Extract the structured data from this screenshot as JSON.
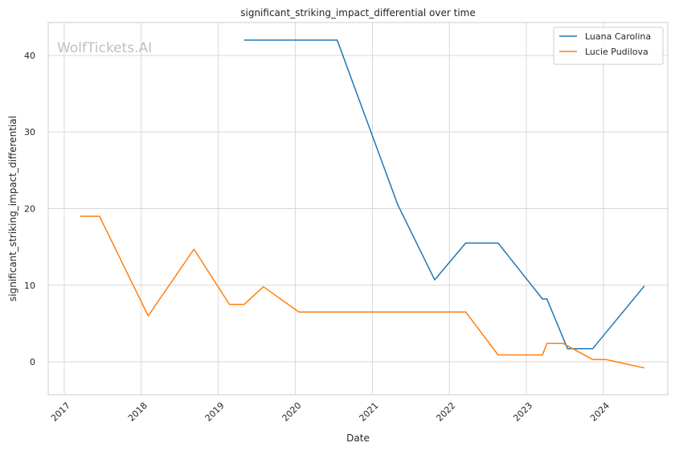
{
  "chart_data": {
    "type": "line",
    "title": "significant_striking_impact_differential over time",
    "xlabel": "Date",
    "ylabel": "significant_striking_impact_differential",
    "watermark": "WolfTickets.AI",
    "x_ticks": [
      "2017",
      "2018",
      "2019",
      "2020",
      "2021",
      "2022",
      "2023",
      "2024"
    ],
    "y_ticks": [
      0,
      10,
      20,
      30,
      40
    ],
    "xlim": [
      "2016-10-17",
      "2024-11-01"
    ],
    "ylim": [
      -4.3,
      44.3
    ],
    "grid": true,
    "legend_position": "top-right",
    "series": [
      {
        "name": "Luana Carolina",
        "color": "#1f77b4",
        "points": [
          {
            "x": "2019-05-04",
            "y": 42.0
          },
          {
            "x": "2020-07-18",
            "y": 42.0
          },
          {
            "x": "2021-05-01",
            "y": 20.5
          },
          {
            "x": "2021-10-23",
            "y": 10.7
          },
          {
            "x": "2022-03-19",
            "y": 15.5
          },
          {
            "x": "2022-08-20",
            "y": 15.5
          },
          {
            "x": "2023-03-18",
            "y": 8.2
          },
          {
            "x": "2023-04-08",
            "y": 8.2
          },
          {
            "x": "2023-07-15",
            "y": 1.7
          },
          {
            "x": "2023-11-11",
            "y": 1.7
          },
          {
            "x": "2024-07-13",
            "y": 9.9
          }
        ]
      },
      {
        "name": "Lucie Pudilova",
        "color": "#ff7f0e",
        "points": [
          {
            "x": "2017-03-18",
            "y": 19.0
          },
          {
            "x": "2017-06-17",
            "y": 19.0
          },
          {
            "x": "2018-02-03",
            "y": 6.0
          },
          {
            "x": "2018-09-08",
            "y": 14.7
          },
          {
            "x": "2019-02-23",
            "y": 7.5
          },
          {
            "x": "2019-05-04",
            "y": 7.5
          },
          {
            "x": "2019-08-03",
            "y": 9.8
          },
          {
            "x": "2020-01-18",
            "y": 6.5
          },
          {
            "x": "2022-03-19",
            "y": 6.5
          },
          {
            "x": "2022-08-20",
            "y": 0.9
          },
          {
            "x": "2023-03-18",
            "y": 0.9
          },
          {
            "x": "2023-04-08",
            "y": 2.4
          },
          {
            "x": "2023-06-24",
            "y": 2.4
          },
          {
            "x": "2023-11-11",
            "y": 0.3
          },
          {
            "x": "2024-01-13",
            "y": 0.3
          },
          {
            "x": "2024-07-13",
            "y": -0.8
          }
        ]
      }
    ]
  }
}
